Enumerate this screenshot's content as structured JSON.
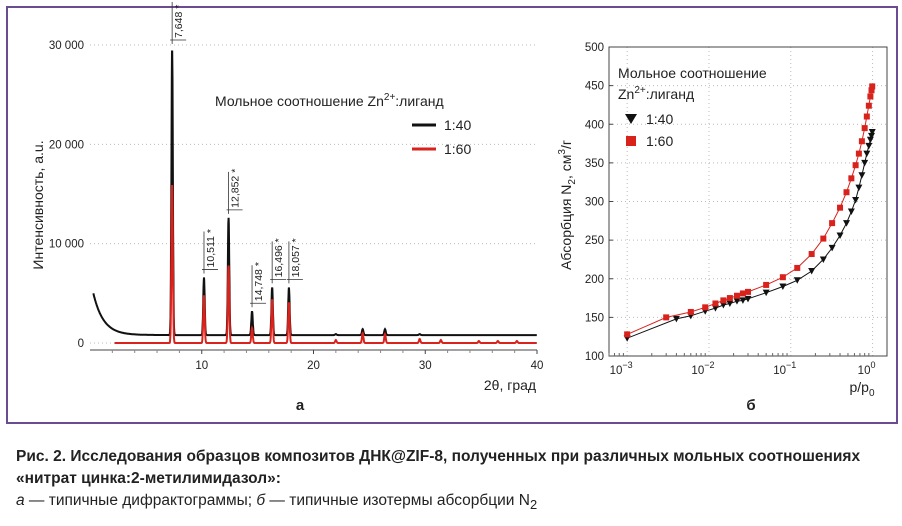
{
  "caption": {
    "title": "Рис. 2. Исследования образцов композитов ДНК@ZIF-8, полученных при различных мольных соотношениях «нитрат цинка:2-метилимидазол»:",
    "desc_a_letter": "а",
    "desc_a": " — типичные дифрактограммы; ",
    "desc_b_letter": "б",
    "desc_b": " — типичные изотермы абсорбции N",
    "desc_b_sub": "2"
  },
  "colors": {
    "black": "#111111",
    "red": "#d9221c",
    "frame": "#6a4c93"
  },
  "chart_data": [
    {
      "type": "line",
      "panel_label": "а",
      "ylabel": "Интенсивность, а.u.",
      "xlabel": "2θ, град",
      "xlim": [
        0,
        40
      ],
      "ylim": [
        0,
        30000
      ],
      "x_ticks": [
        10,
        20,
        30,
        40
      ],
      "y_ticks": [
        0,
        10000,
        20000,
        30000
      ],
      "x_tick_labels": [
        "10",
        "20",
        "30",
        "40"
      ],
      "y_tick_labels": [
        "0",
        "10 000",
        "20 000",
        "30 000"
      ],
      "legend_title_prefix": "Мольное соотношение Zn",
      "legend_title_sup": "2+",
      "legend_title_suffix": ":лиганд",
      "series": [
        {
          "name": "1:40",
          "color": "#111111",
          "baseline": 800,
          "peaks": [
            [
              6.8,
              800
            ],
            [
              7.35,
              29700
            ],
            [
              10.2,
              6600
            ],
            [
              12.4,
              12600
            ],
            [
              14.5,
              3200
            ],
            [
              16.3,
              5600
            ],
            [
              17.8,
              5600
            ],
            [
              22.0,
              900
            ],
            [
              24.4,
              1400
            ],
            [
              26.4,
              1400
            ],
            [
              29.5,
              900
            ],
            [
              30.5,
              700
            ],
            [
              31.4,
              700
            ],
            [
              32.3,
              700
            ],
            [
              34.8,
              600
            ],
            [
              36.5,
              500
            ],
            [
              38.2,
              500
            ],
            [
              39.5,
              400
            ]
          ]
        },
        {
          "name": "1:60",
          "color": "#d9221c",
          "baseline": 0,
          "peaks": [
            [
              7.35,
              16000
            ],
            [
              10.2,
              4800
            ],
            [
              12.4,
              7800
            ],
            [
              14.5,
              1500
            ],
            [
              16.3,
              4400
            ],
            [
              17.8,
              4100
            ],
            [
              22.0,
              300
            ],
            [
              24.4,
              1000
            ],
            [
              26.4,
              900
            ],
            [
              29.5,
              400
            ],
            [
              31.4,
              300
            ],
            [
              34.8,
              200
            ],
            [
              36.5,
              200
            ],
            [
              38.2,
              200
            ]
          ]
        }
      ],
      "annotations": [
        {
          "x": 7.35,
          "label": "7,648"
        },
        {
          "x": 10.2,
          "label": "10,511"
        },
        {
          "x": 12.4,
          "label": "12,852"
        },
        {
          "x": 14.5,
          "label": "14,748"
        },
        {
          "x": 16.3,
          "label": "16,496"
        },
        {
          "x": 17.8,
          "label": "18,057"
        }
      ]
    },
    {
      "type": "scatter",
      "panel_label": "б",
      "ylabel_prefix": "Абсорбция N",
      "ylabel_sub": "2",
      "ylabel_suffix": ", см",
      "ylabel_sup": "3",
      "ylabel_end": "/г",
      "xlabel_prefix": "p/p",
      "xlabel_sub": "0",
      "x_scale": "log",
      "xlim": [
        0.0006,
        1.5
      ],
      "ylim": [
        100,
        500
      ],
      "x_ticks": [
        0.001,
        0.01,
        0.1,
        1
      ],
      "x_tick_labels": [
        [
          "10",
          "−3"
        ],
        [
          "10",
          "−2"
        ],
        [
          "10",
          "−1"
        ],
        [
          "10",
          "0"
        ]
      ],
      "y_ticks": [
        100,
        150,
        200,
        250,
        300,
        350,
        400,
        450,
        500
      ],
      "y_tick_labels": [
        "100",
        "150",
        "200",
        "250",
        "300",
        "350",
        "400",
        "450",
        "500"
      ],
      "legend_title_line1": "Мольное соотношение",
      "legend_title_line2_prefix": "Zn",
      "legend_title_line2_sup": "2+",
      "legend_title_line2_suffix": ":лиганд",
      "series": [
        {
          "name": "1:40",
          "color": "#111111",
          "marker": "triangle-down",
          "x": [
            0.001,
            0.004,
            0.006,
            0.009,
            0.012,
            0.015,
            0.018,
            0.022,
            0.026,
            0.03,
            0.05,
            0.08,
            0.12,
            0.18,
            0.25,
            0.32,
            0.4,
            0.48,
            0.55,
            0.62,
            0.68,
            0.74,
            0.8,
            0.85,
            0.9,
            0.94,
            0.97,
            0.99
          ],
          "y": [
            123,
            148,
            152,
            158,
            162,
            166,
            168,
            171,
            172,
            174,
            182,
            190,
            198,
            210,
            225,
            240,
            256,
            272,
            287,
            302,
            318,
            334,
            350,
            362,
            372,
            380,
            385,
            390
          ]
        },
        {
          "name": "1:60",
          "color": "#d9221c",
          "marker": "square",
          "x": [
            0.001,
            0.003,
            0.006,
            0.009,
            0.012,
            0.015,
            0.018,
            0.022,
            0.026,
            0.03,
            0.05,
            0.08,
            0.12,
            0.18,
            0.25,
            0.32,
            0.4,
            0.48,
            0.55,
            0.62,
            0.68,
            0.74,
            0.8,
            0.85,
            0.9,
            0.94,
            0.97,
            0.99
          ],
          "y": [
            128,
            150,
            157,
            163,
            168,
            172,
            175,
            178,
            181,
            183,
            192,
            202,
            214,
            232,
            252,
            272,
            292,
            312,
            330,
            347,
            362,
            378,
            395,
            410,
            424,
            436,
            444,
            449
          ]
        }
      ]
    }
  ]
}
